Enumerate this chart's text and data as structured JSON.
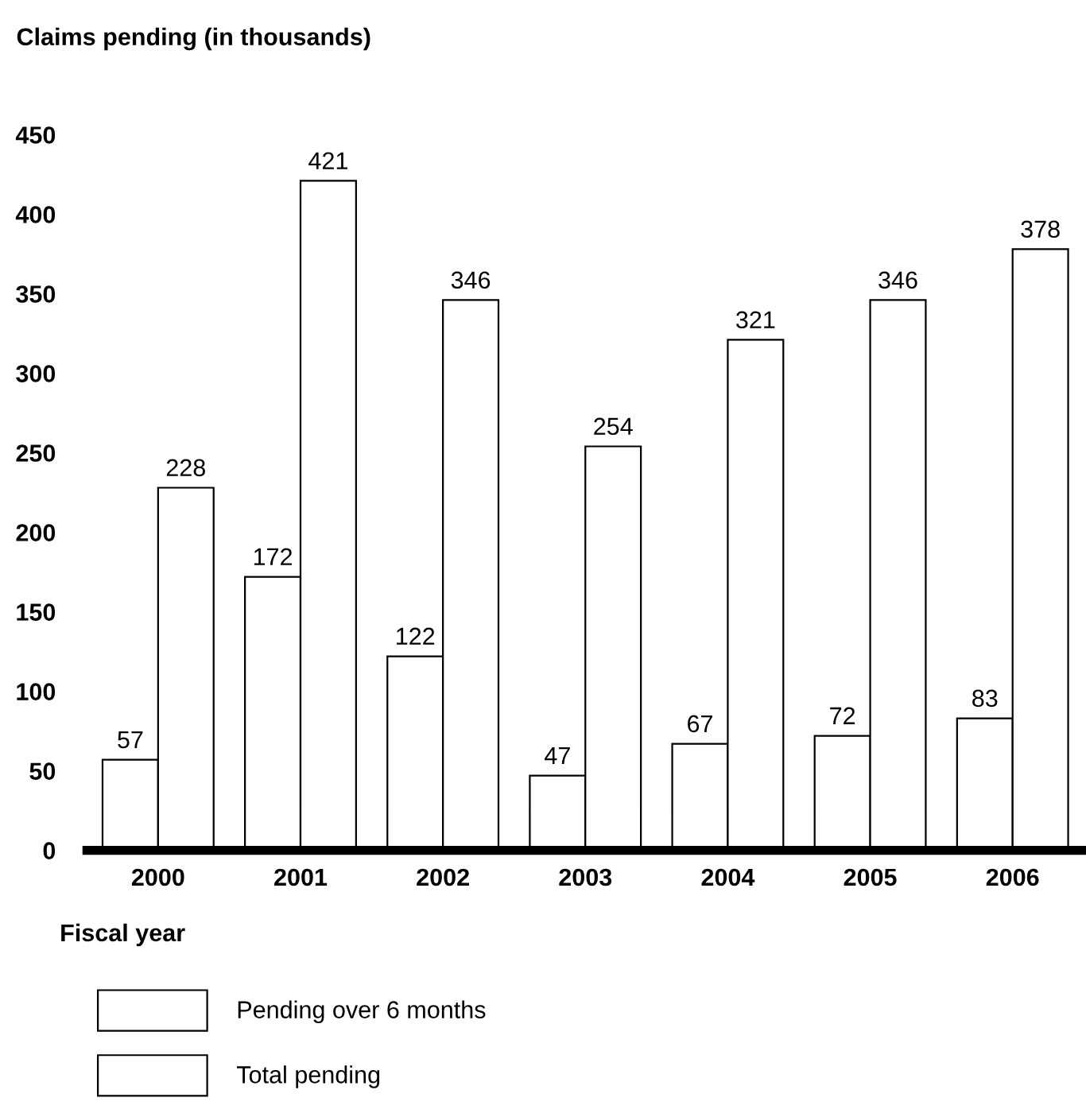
{
  "chart_data": {
    "type": "bar",
    "title": "Claims pending (in thousands)",
    "xlabel": "Fiscal year",
    "categories": [
      "2000",
      "2001",
      "2002",
      "2003",
      "2004",
      "2005",
      "2006"
    ],
    "series": [
      {
        "name": "Pending over 6 months",
        "color": "#ffffff",
        "values": [
          57,
          172,
          122,
          47,
          67,
          72,
          83
        ]
      },
      {
        "name": "Total pending",
        "color": "#ffffff",
        "values": [
          228,
          421,
          346,
          254,
          321,
          346,
          378
        ]
      }
    ],
    "ylim": [
      0,
      450
    ],
    "yticks": [
      0,
      50,
      100,
      150,
      200,
      250,
      300,
      350,
      400,
      450
    ],
    "data_labels": true,
    "grid": false,
    "legend": "bottom"
  }
}
